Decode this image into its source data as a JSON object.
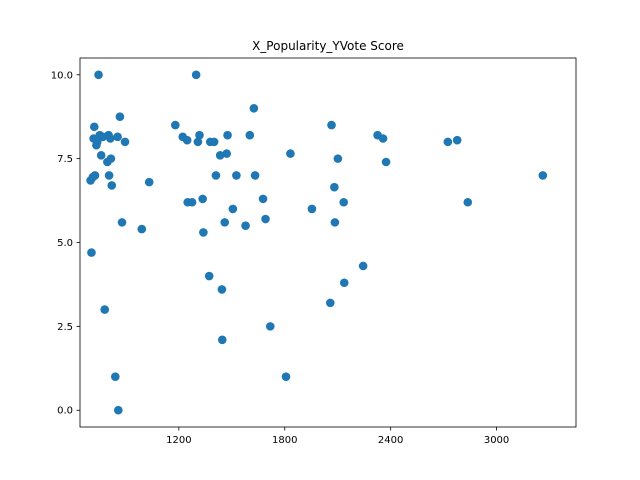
{
  "chart_data": {
    "type": "scatter",
    "title": "X_Popularity_YVote Score",
    "xlabel": "",
    "ylabel": "",
    "xlim": [
      640,
      3450
    ],
    "ylim": [
      -0.5,
      10.5
    ],
    "xticks": [
      1200,
      1800,
      2400,
      3000
    ],
    "yticks": [
      0.0,
      2.5,
      5.0,
      7.5,
      10.0
    ],
    "xtick_labels": [
      "1200",
      "1800",
      "2400",
      "3000"
    ],
    "ytick_labels": [
      "0.0",
      "2.5",
      "5.0",
      "7.5",
      "10.0"
    ],
    "grid": false,
    "marker_color": "#1f77b4",
    "x": [
      700,
      705,
      713,
      717,
      721,
      725,
      733,
      738,
      745,
      752,
      760,
      770,
      780,
      795,
      802,
      805,
      812,
      815,
      820,
      840,
      853,
      857,
      866,
      878,
      895,
      990,
      1032,
      1180,
      1222,
      1247,
      1250,
      1275,
      1298,
      1308,
      1317,
      1335,
      1339,
      1372,
      1378,
      1400,
      1410,
      1434,
      1444,
      1446,
      1460,
      1471,
      1476,
      1506,
      1526,
      1578,
      1602,
      1625,
      1632,
      1677,
      1691,
      1718,
      1807,
      1832,
      1954,
      2058,
      2065,
      2081,
      2084,
      2101,
      2134,
      2137,
      2244,
      2326,
      2357,
      2374,
      2724,
      2777,
      2837,
      3262
    ],
    "y": [
      6.85,
      4.7,
      6.95,
      8.1,
      8.45,
      7.0,
      7.9,
      8.0,
      10.0,
      8.2,
      7.6,
      8.15,
      3.0,
      7.4,
      8.2,
      7.0,
      8.1,
      7.5,
      6.7,
      1.0,
      8.15,
      0.0,
      8.75,
      5.6,
      8.0,
      5.4,
      6.8,
      8.5,
      8.15,
      8.05,
      6.2,
      6.2,
      10.0,
      8.0,
      8.2,
      6.3,
      5.3,
      4.0,
      8.0,
      8.0,
      7.0,
      7.6,
      3.6,
      2.1,
      5.6,
      7.65,
      8.2,
      6.0,
      7.0,
      5.5,
      8.2,
      9.0,
      7.0,
      6.3,
      5.7,
      2.5,
      1.0,
      7.65,
      6.0,
      3.2,
      8.5,
      6.65,
      5.6,
      7.5,
      6.2,
      3.8,
      4.3,
      8.2,
      8.1,
      7.4,
      8.0,
      8.05,
      6.2,
      7.0
    ]
  }
}
